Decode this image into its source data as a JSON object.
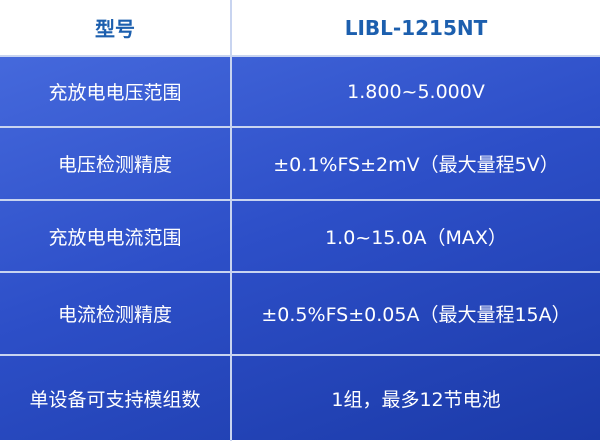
{
  "header": {
    "label": "型号",
    "value": "LIBL-1215NT"
  },
  "rows": [
    {
      "label": "充放电电压范围",
      "value": "1.800~5.000V"
    },
    {
      "label": "电压检测精度",
      "value": "±0.1%FS±2mV（最大量程5V）"
    },
    {
      "label": "充放电电流范围",
      "value": "1.0~15.0A（MAX）"
    },
    {
      "label": "电流检测精度",
      "value": "±0.5%FS±0.05A（最大量程15A）"
    },
    {
      "label": "单设备可支持模组数",
      "value": "1组，最多12节电池"
    }
  ],
  "colors": {
    "header_text": "#1c5fae",
    "row_bg": "#2d4fc8"
  }
}
